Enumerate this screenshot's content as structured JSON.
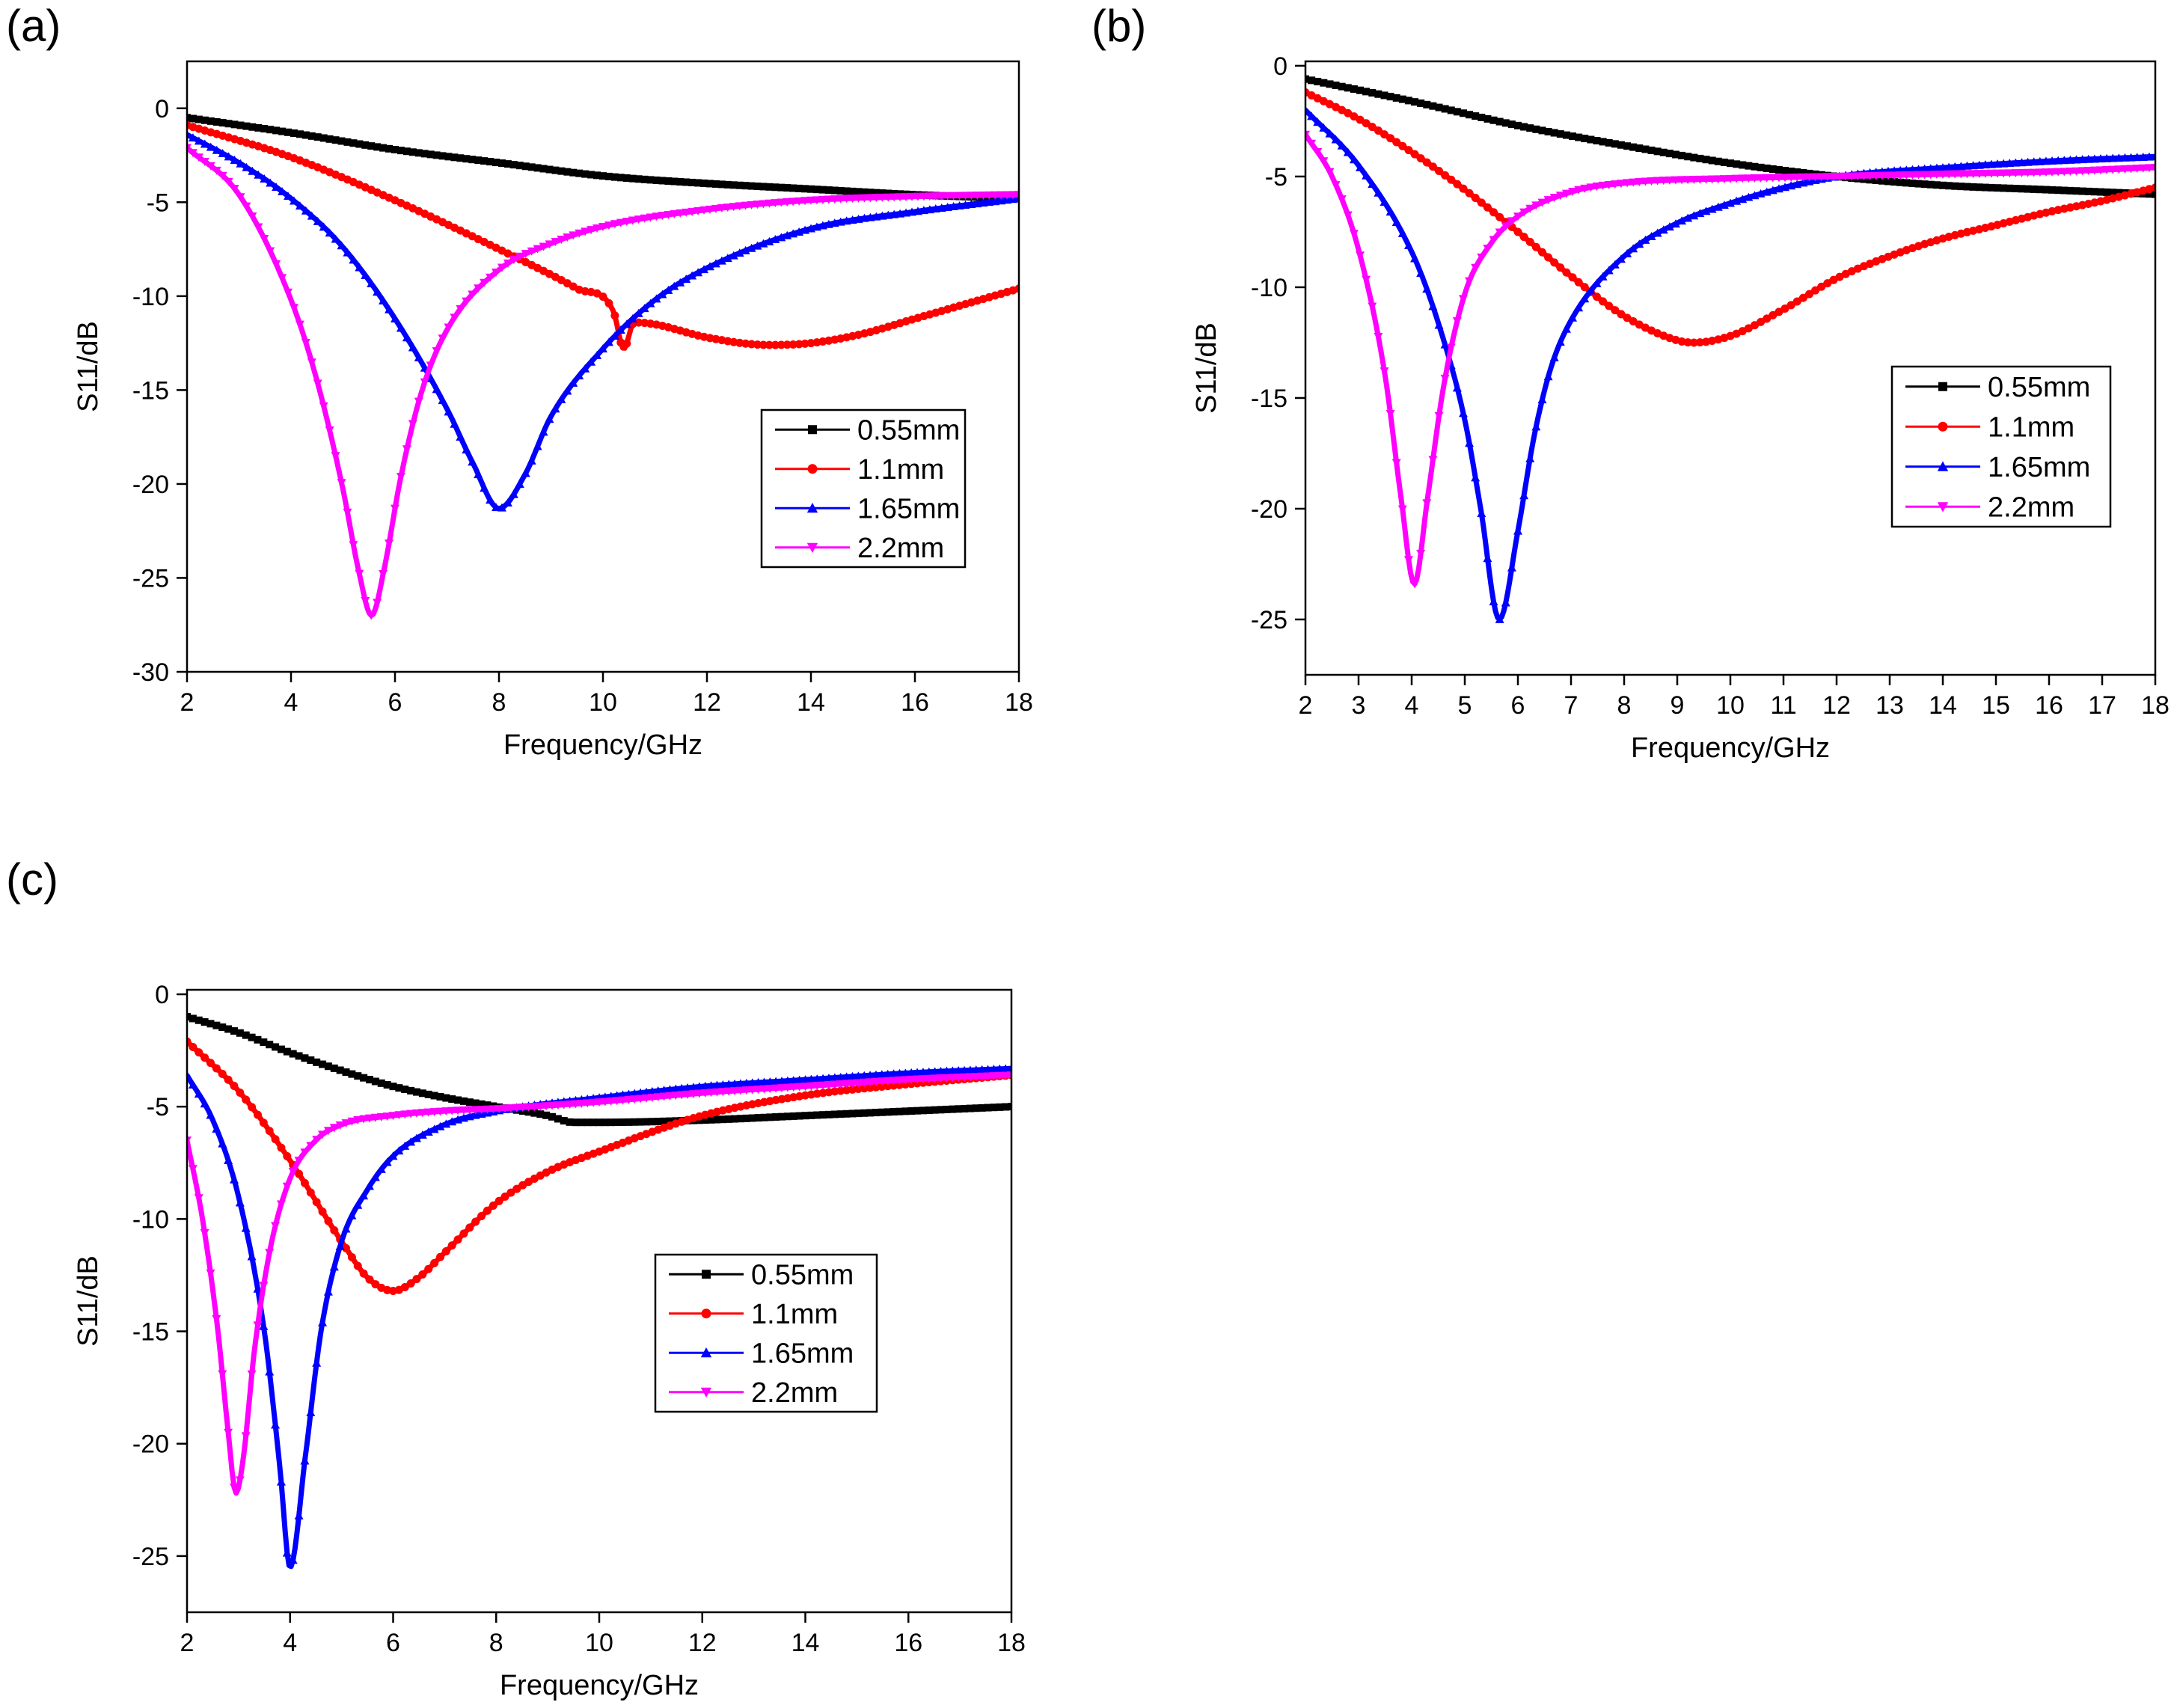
{
  "chart_data": [
    {
      "panel": "(a)",
      "type": "line",
      "xlabel": "Frequency/GHz",
      "ylabel": "S11/dB",
      "xlim": [
        2,
        18
      ],
      "ylim": [
        -30,
        2.5
      ],
      "xticks": [
        2,
        4,
        6,
        8,
        10,
        12,
        14,
        16,
        18
      ],
      "yticks": [
        0,
        -5,
        -10,
        -15,
        -20,
        -25,
        -30
      ],
      "legend_position": "center-right",
      "series": [
        {
          "name": "0.55mm",
          "color": "#000000",
          "marker": "square",
          "x": [
            2,
            4,
            6,
            8,
            10,
            12,
            14,
            16,
            18
          ],
          "y": [
            -0.5,
            -1.3,
            -2.2,
            -2.9,
            -3.6,
            -4.0,
            -4.3,
            -4.6,
            -4.8
          ]
        },
        {
          "name": "1.1mm",
          "color": "#ff0000",
          "marker": "circle",
          "x": [
            2,
            4,
            6,
            8,
            9.5,
            10.2,
            10.4,
            10.6,
            11,
            12,
            13.2,
            14,
            15,
            16,
            17,
            18
          ],
          "y": [
            -0.9,
            -2.6,
            -4.9,
            -7.5,
            -9.6,
            -10.8,
            -12.8,
            -11.4,
            -11.5,
            -12.2,
            -12.6,
            -12.5,
            -12.0,
            -11.2,
            -10.4,
            -9.6
          ]
        },
        {
          "name": "1.65mm",
          "color": "#0000ff",
          "marker": "triangle-up",
          "x": [
            2,
            3,
            4,
            5,
            6,
            7,
            7.5,
            8,
            8.5,
            9,
            10,
            11,
            12,
            14,
            16,
            18
          ],
          "y": [
            -1.4,
            -2.9,
            -4.8,
            -7.4,
            -11.2,
            -16.0,
            -18.9,
            -21.3,
            -19.5,
            -16.4,
            -12.8,
            -10.2,
            -8.5,
            -6.4,
            -5.5,
            -4.8
          ]
        },
        {
          "name": "2.2mm",
          "color": "#ff00ff",
          "marker": "triangle-down",
          "x": [
            2,
            3,
            4,
            4.5,
            5,
            5.3,
            5.55,
            5.8,
            6.1,
            6.5,
            7,
            8,
            9,
            10,
            12,
            14,
            16,
            18
          ],
          "y": [
            -2.1,
            -4.6,
            -10.2,
            -14.5,
            -20.3,
            -24.6,
            -27.0,
            -24.4,
            -19.8,
            -15.2,
            -11.8,
            -8.6,
            -7.2,
            -6.3,
            -5.4,
            -4.9,
            -4.7,
            -4.6
          ]
        }
      ]
    },
    {
      "panel": "(b)",
      "type": "line",
      "xlabel": "Frequency/GHz",
      "ylabel": "S11/dB",
      "xlim": [
        2,
        18
      ],
      "ylim": [
        -27.5,
        0.2
      ],
      "xticks": [
        2,
        3,
        4,
        5,
        6,
        7,
        8,
        9,
        10,
        11,
        12,
        13,
        14,
        15,
        16,
        17,
        18
      ],
      "yticks": [
        0,
        -5,
        -10,
        -15,
        -20,
        -25
      ],
      "legend_position": "center-right",
      "series": [
        {
          "name": "0.55mm",
          "color": "#000000",
          "marker": "square",
          "x": [
            2,
            4,
            6,
            8,
            10,
            12,
            14,
            16,
            18
          ],
          "y": [
            -0.6,
            -1.6,
            -2.7,
            -3.6,
            -4.4,
            -5.0,
            -5.4,
            -5.6,
            -5.8
          ]
        },
        {
          "name": "1.1mm",
          "color": "#ff0000",
          "marker": "circle",
          "x": [
            2,
            3,
            4,
            5,
            6,
            7,
            8,
            9,
            9.3,
            10,
            11,
            12,
            13,
            14,
            15,
            16,
            17,
            18
          ],
          "y": [
            -1.2,
            -2.4,
            -3.9,
            -5.6,
            -7.5,
            -9.5,
            -11.3,
            -12.4,
            -12.5,
            -12.2,
            -11.0,
            -9.6,
            -8.6,
            -7.8,
            -7.2,
            -6.6,
            -6.1,
            -5.5
          ]
        },
        {
          "name": "1.65mm",
          "color": "#0000ff",
          "marker": "triangle-up",
          "x": [
            2,
            3,
            4,
            4.5,
            5,
            5.3,
            5.65,
            6.0,
            6.3,
            6.6,
            7,
            8,
            9,
            10,
            11,
            12,
            14,
            16,
            18
          ],
          "y": [
            -2.0,
            -4.5,
            -8.4,
            -11.6,
            -16.0,
            -20.0,
            -25.0,
            -21.0,
            -16.8,
            -13.8,
            -11.5,
            -8.6,
            -7.1,
            -6.2,
            -5.5,
            -5.0,
            -4.6,
            -4.3,
            -4.1
          ]
        },
        {
          "name": "2.2mm",
          "color": "#ff00ff",
          "marker": "triangle-down",
          "x": [
            2,
            2.5,
            3,
            3.5,
            3.8,
            4.05,
            4.3,
            4.6,
            5,
            5.5,
            6,
            7,
            8,
            10,
            12,
            14,
            16,
            18
          ],
          "y": [
            -3.1,
            -5.0,
            -8.3,
            -14.0,
            -19.5,
            -23.4,
            -19.5,
            -14.5,
            -10.3,
            -8.0,
            -6.8,
            -5.7,
            -5.3,
            -5.1,
            -5.0,
            -4.9,
            -4.8,
            -4.6
          ]
        }
      ]
    },
    {
      "panel": "(c)",
      "type": "line",
      "xlabel": "Frequency/GHz",
      "ylabel": "S11/dB",
      "xlim": [
        2,
        18
      ],
      "ylim": [
        -27.5,
        0.2
      ],
      "xticks": [
        2,
        4,
        6,
        8,
        10,
        12,
        14,
        16,
        18
      ],
      "yticks": [
        0,
        -5,
        -10,
        -15,
        -20,
        -25
      ],
      "legend_position": "center-right",
      "series": [
        {
          "name": "0.55mm",
          "color": "#000000",
          "marker": "square",
          "x": [
            2,
            3,
            4,
            5,
            6,
            7,
            8,
            9,
            9.5,
            10,
            12,
            14,
            16,
            18
          ],
          "y": [
            -1.0,
            -1.7,
            -2.6,
            -3.4,
            -4.1,
            -4.6,
            -5.0,
            -5.4,
            -5.7,
            -5.7,
            -5.6,
            -5.4,
            -5.2,
            -5.0
          ]
        },
        {
          "name": "1.1mm",
          "color": "#ff0000",
          "marker": "circle",
          "x": [
            2,
            3,
            4,
            5,
            5.5,
            6,
            6.5,
            7,
            8,
            9,
            10,
            12,
            14,
            16,
            18
          ],
          "y": [
            -2.1,
            -4.3,
            -7.4,
            -11.0,
            -12.6,
            -13.2,
            -12.6,
            -11.5,
            -9.3,
            -7.9,
            -7.0,
            -5.4,
            -4.5,
            -4.0,
            -3.6
          ]
        },
        {
          "name": "1.65mm",
          "color": "#0000ff",
          "marker": "triangle-up",
          "x": [
            2,
            2.5,
            3,
            3.5,
            3.8,
            4.0,
            4.3,
            4.6,
            5,
            5.5,
            6,
            7,
            8,
            10,
            12,
            14,
            16,
            18
          ],
          "y": [
            -3.6,
            -5.6,
            -9.0,
            -15.0,
            -21.0,
            -25.5,
            -20.5,
            -15.0,
            -11.0,
            -8.7,
            -7.2,
            -5.8,
            -5.2,
            -4.6,
            -4.1,
            -3.8,
            -3.5,
            -3.3
          ]
        },
        {
          "name": "2.2mm",
          "color": "#ff00ff",
          "marker": "triangle-down",
          "x": [
            2,
            2.3,
            2.6,
            2.8,
            2.95,
            3.1,
            3.3,
            3.6,
            4,
            4.5,
            5,
            6,
            7,
            8,
            10,
            12,
            14,
            16,
            18
          ],
          "y": [
            -6.5,
            -10.0,
            -15.0,
            -19.5,
            -22.2,
            -20.5,
            -16.0,
            -11.5,
            -8.2,
            -6.5,
            -5.8,
            -5.4,
            -5.2,
            -5.1,
            -4.8,
            -4.4,
            -4.1,
            -3.8,
            -3.6
          ]
        }
      ]
    }
  ]
}
